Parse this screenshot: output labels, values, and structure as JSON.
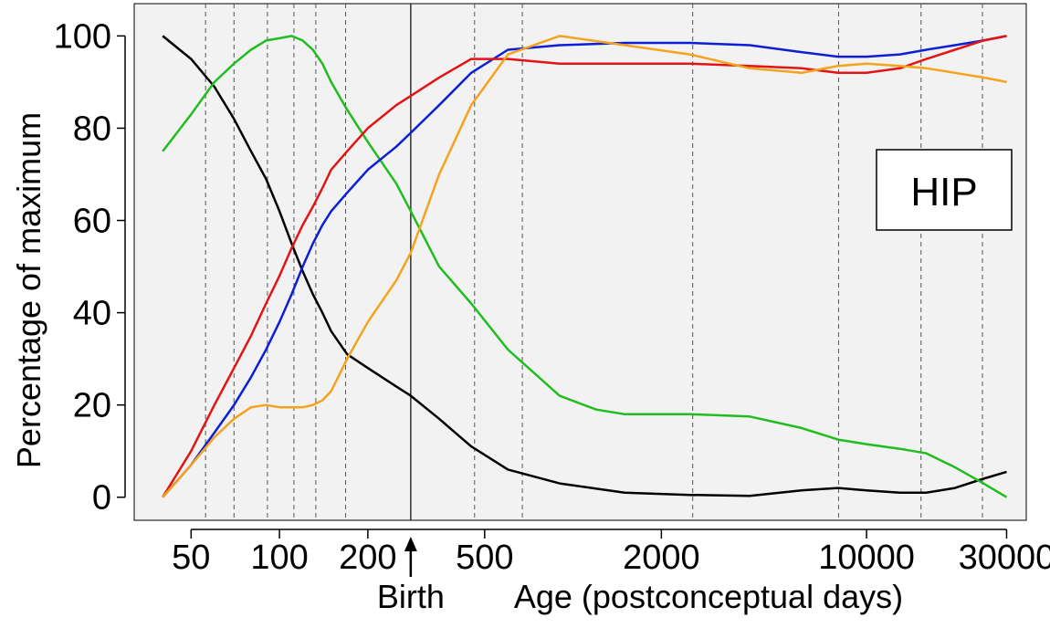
{
  "chart_data": {
    "type": "line",
    "title": "",
    "xlabel": "Age (postconceptual days)",
    "ylabel": "Percentage of maximum",
    "x_scale": "log",
    "xlim": [
      32,
      35000
    ],
    "ylim": [
      -5,
      107
    ],
    "x_ticks": [
      50,
      100,
      200,
      500,
      2000,
      10000,
      30000
    ],
    "x_tick_labels": [
      "50",
      "100",
      "200",
      "500",
      "2000",
      "10000",
      "30000"
    ],
    "y_ticks": [
      0,
      20,
      40,
      60,
      80,
      100
    ],
    "y_tick_labels": [
      "0",
      "20",
      "40",
      "60",
      "80",
      "100"
    ],
    "grid": false,
    "vertical_dashed_lines": [
      56,
      70,
      91,
      112,
      133,
      168,
      462,
      672,
      2557,
      8030,
      15330,
      24820
    ],
    "birth_line": {
      "x": 280,
      "label": "Birth"
    },
    "annotation_box": {
      "text": "HIP",
      "placement": "right"
    },
    "background_color": "#f2f2f2",
    "series": [
      {
        "color": "#000000",
        "x": [
          40,
          50,
          60,
          70,
          80,
          90,
          100,
          110,
          120,
          130,
          140,
          150,
          170,
          200,
          250,
          280,
          350,
          450,
          600,
          900,
          1500,
          2500,
          4000,
          6000,
          8000,
          10000,
          13000,
          16000,
          20000,
          25000,
          30000
        ],
        "y": [
          100,
          95,
          89,
          82,
          75,
          69,
          62,
          55,
          49,
          44,
          40,
          36,
          31,
          28,
          24,
          22,
          17,
          11,
          6,
          3,
          1,
          0.5,
          0.3,
          1.5,
          2,
          1.5,
          1,
          1,
          2,
          4,
          5.5
        ]
      },
      {
        "color": "#1fbd1f",
        "x": [
          40,
          50,
          60,
          70,
          80,
          90,
          100,
          110,
          120,
          130,
          140,
          150,
          170,
          200,
          250,
          280,
          350,
          450,
          600,
          900,
          1200,
          1500,
          2500,
          4000,
          6000,
          8000,
          10000,
          13000,
          16000,
          20000,
          25000,
          30000
        ],
        "y": [
          75,
          83,
          90,
          94,
          97,
          99,
          99.5,
          100,
          99,
          97,
          94,
          90,
          84,
          77,
          68,
          62,
          50,
          42,
          32,
          22,
          19,
          18,
          18,
          17.5,
          15,
          12.5,
          11.5,
          10.5,
          9.5,
          6.5,
          3,
          0
        ]
      },
      {
        "color": "#0c1fd6",
        "x": [
          40,
          50,
          60,
          70,
          80,
          90,
          100,
          110,
          120,
          130,
          140,
          150,
          170,
          200,
          250,
          280,
          350,
          450,
          600,
          900,
          1500,
          2500,
          4000,
          6000,
          8000,
          10000,
          13000,
          16000,
          20000,
          25000,
          30000
        ],
        "y": [
          0,
          7,
          14,
          20,
          26,
          32,
          38,
          44,
          50,
          55,
          59,
          62,
          66,
          71,
          76,
          79,
          85,
          92,
          97,
          98,
          98.5,
          98.5,
          98,
          96.5,
          95.5,
          95.5,
          96,
          97,
          98,
          99,
          100
        ]
      },
      {
        "color": "#e31414",
        "x": [
          40,
          50,
          60,
          70,
          80,
          90,
          100,
          110,
          120,
          130,
          140,
          150,
          170,
          200,
          250,
          280,
          350,
          450,
          600,
          900,
          1500,
          2500,
          4000,
          6000,
          8000,
          10000,
          13000,
          16000,
          20000,
          25000,
          30000
        ],
        "y": [
          0,
          10,
          20,
          28,
          35,
          42,
          48,
          54,
          59,
          63,
          67,
          71,
          75,
          80,
          85,
          87,
          91,
          95,
          95,
          94,
          94,
          94,
          93.5,
          93,
          92,
          92,
          93,
          95,
          97,
          99,
          100
        ]
      },
      {
        "color": "#f5a21c",
        "x": [
          40,
          50,
          60,
          70,
          80,
          90,
          100,
          110,
          120,
          130,
          140,
          150,
          170,
          200,
          250,
          280,
          350,
          450,
          600,
          900,
          1500,
          2500,
          4000,
          6000,
          8000,
          10000,
          13000,
          16000,
          20000,
          25000,
          30000
        ],
        "y": [
          0,
          7,
          13,
          17,
          19.5,
          20,
          19.5,
          19.5,
          19.5,
          20,
          21,
          23,
          30,
          38,
          47,
          53,
          70,
          85,
          96,
          100,
          98,
          96,
          93,
          92,
          93.5,
          94,
          93.5,
          93,
          92,
          91,
          90
        ]
      }
    ]
  }
}
